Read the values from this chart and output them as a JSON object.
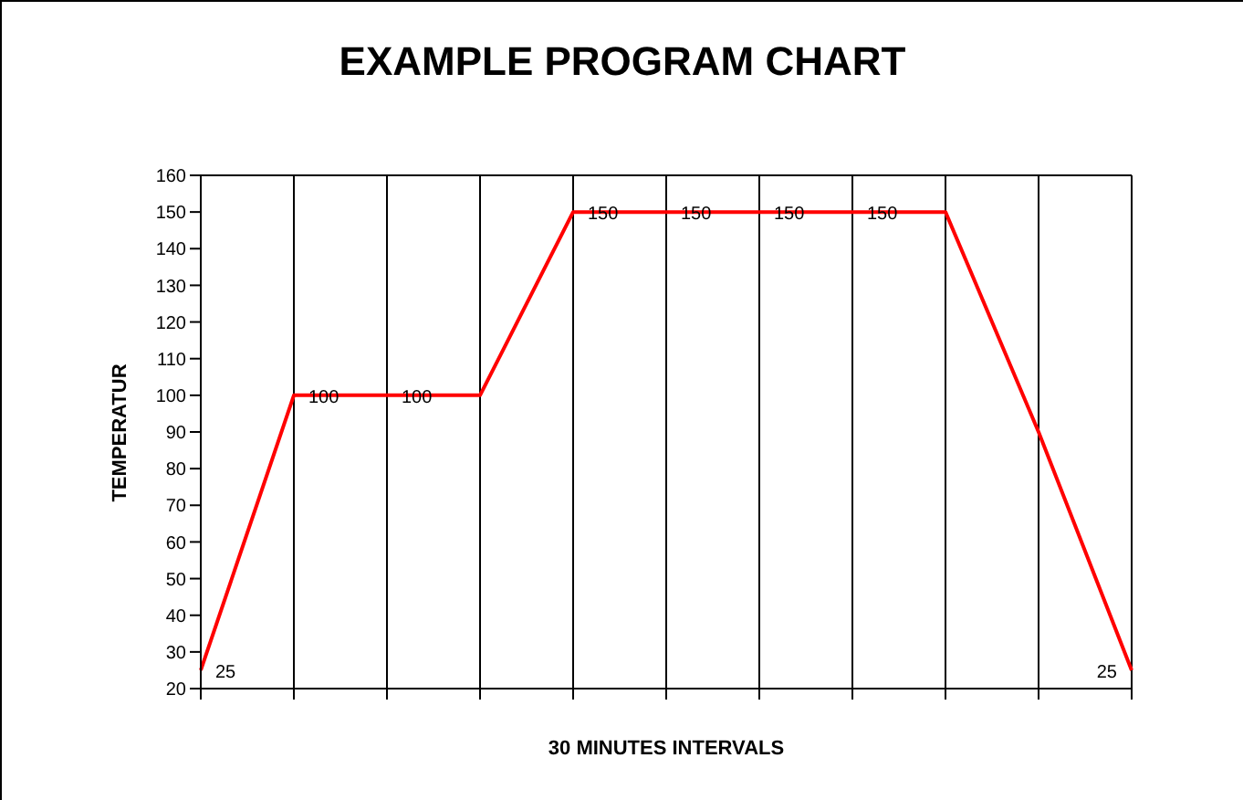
{
  "chart_data": {
    "type": "line",
    "title": "EXAMPLE PROGRAM CHART",
    "xlabel": "30 MINUTES INTERVALS",
    "ylabel": "TEMPERATUR",
    "categories": [
      null,
      null,
      null,
      null,
      null,
      null,
      null,
      null,
      null,
      null,
      null
    ],
    "series": [
      {
        "color": "#ff0000",
        "values": [
          25,
          100,
          100,
          100,
          150,
          150,
          150,
          150,
          150,
          90,
          25
        ],
        "value_labels": [
          "25",
          "100",
          "100",
          null,
          "150",
          "150",
          "150",
          "150",
          null,
          null,
          "25"
        ]
      }
    ],
    "ylim": [
      20,
      160
    ],
    "yticks": [
      20,
      30,
      40,
      50,
      60,
      70,
      80,
      90,
      100,
      110,
      120,
      130,
      140,
      150,
      160
    ],
    "grid": true,
    "marker": "none",
    "line_style": "solid",
    "legend": false
  }
}
